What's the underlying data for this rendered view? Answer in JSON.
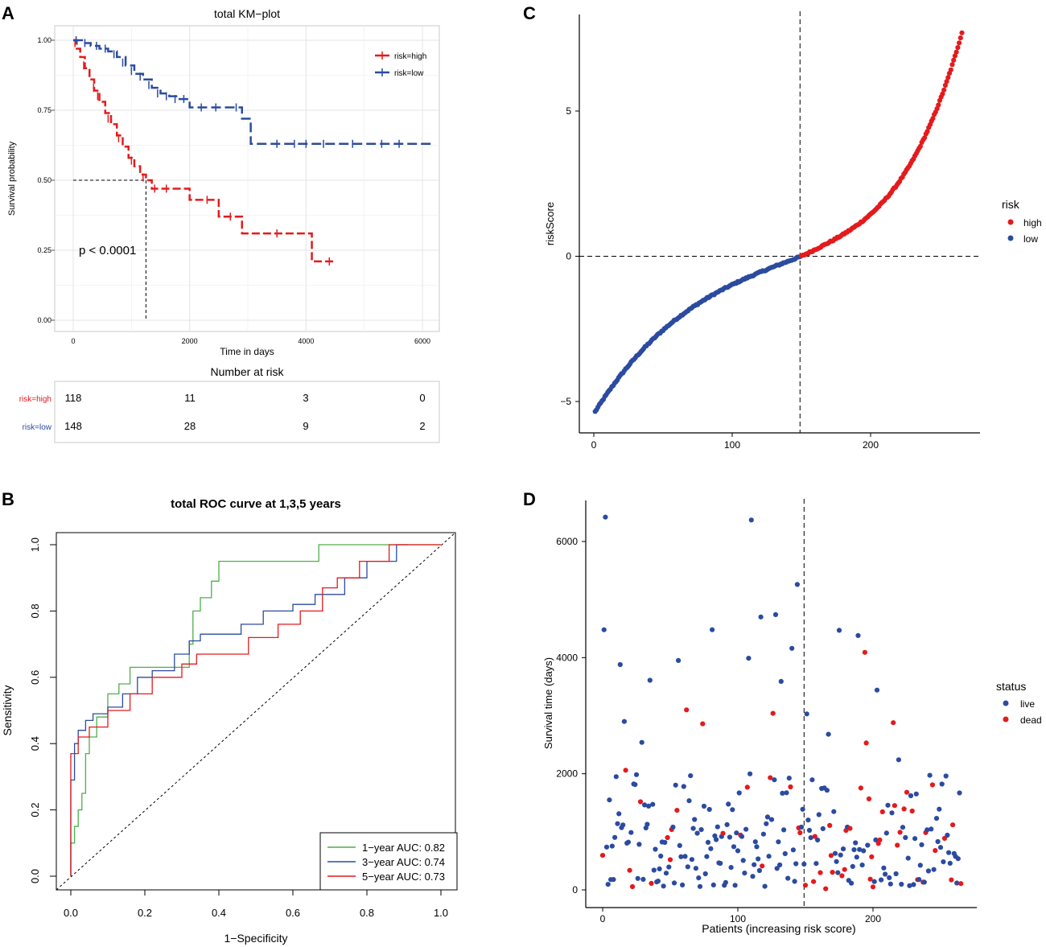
{
  "chart_data": [
    {
      "panel": "A",
      "type": "line",
      "title": "total KM−plot",
      "xlabel": "Time in days",
      "ylabel": "Survival probability",
      "xlim": [
        0,
        6200
      ],
      "ylim": [
        0,
        1
      ],
      "xticks": [
        "0",
        "2000",
        "4000",
        "6000"
      ],
      "yticks": [
        "0.00",
        "0.25",
        "0.50",
        "0.75",
        "1.00"
      ],
      "pvalue": "p < 0.0001",
      "median_survival_high": 1250,
      "legend": [
        "risk=high",
        "risk=low"
      ],
      "colors": {
        "high": "#e41a1c",
        "low": "#2b4ba0"
      },
      "series": [
        {
          "name": "risk=high",
          "x": [
            0,
            60,
            120,
            200,
            280,
            360,
            450,
            550,
            650,
            750,
            850,
            950,
            1050,
            1150,
            1250,
            1350,
            2000,
            2500,
            2900,
            3000,
            4100,
            4500
          ],
          "y": [
            1.0,
            0.97,
            0.94,
            0.9,
            0.86,
            0.82,
            0.78,
            0.74,
            0.7,
            0.66,
            0.62,
            0.58,
            0.55,
            0.52,
            0.5,
            0.47,
            0.43,
            0.37,
            0.31,
            0.31,
            0.21,
            0.21
          ],
          "censor_x": [
            30,
            180,
            350,
            420,
            600,
            780,
            1000,
            1200,
            1400,
            1600,
            2300,
            2700,
            3500,
            4400
          ],
          "censor_y": [
            0.99,
            0.91,
            0.83,
            0.8,
            0.72,
            0.65,
            0.57,
            0.51,
            0.47,
            0.47,
            0.43,
            0.37,
            0.31,
            0.21
          ]
        },
        {
          "name": "risk=low",
          "x": [
            0,
            150,
            300,
            450,
            600,
            750,
            900,
            1050,
            1200,
            1350,
            1500,
            1650,
            1800,
            2000,
            2500,
            2900,
            3050,
            3200,
            6200
          ],
          "y": [
            1.0,
            0.99,
            0.98,
            0.97,
            0.96,
            0.94,
            0.91,
            0.88,
            0.86,
            0.83,
            0.81,
            0.8,
            0.79,
            0.76,
            0.76,
            0.72,
            0.63,
            0.63,
            0.63
          ],
          "censor_x": [
            50,
            200,
            400,
            550,
            700,
            850,
            1000,
            1150,
            1300,
            1450,
            1600,
            1750,
            1900,
            2200,
            2450,
            2800,
            3500,
            3800,
            4000,
            4300,
            4800,
            5300,
            5600
          ],
          "censor_y": [
            1.0,
            0.99,
            0.98,
            0.97,
            0.95,
            0.92,
            0.89,
            0.87,
            0.84,
            0.81,
            0.8,
            0.79,
            0.79,
            0.76,
            0.76,
            0.76,
            0.63,
            0.63,
            0.63,
            0.63,
            0.63,
            0.63,
            0.63
          ]
        }
      ],
      "risk_table": {
        "title": "Number at risk",
        "times": [
          0,
          2000,
          4000,
          6000
        ],
        "rows": [
          {
            "label": "risk=high",
            "values": [
              "118",
              "11",
              "3",
              "0"
            ]
          },
          {
            "label": "risk=low",
            "values": [
              "148",
              "28",
              "9",
              "2"
            ]
          }
        ]
      }
    },
    {
      "panel": "B",
      "type": "line",
      "title": "total ROC curve at 1,3,5 years",
      "xlabel": "1−Specificity",
      "ylabel": "Sensitivity",
      "xlim": [
        0,
        1
      ],
      "ylim": [
        0,
        1
      ],
      "xticks": [
        "0.0",
        "0.2",
        "0.4",
        "0.6",
        "0.8",
        "1.0"
      ],
      "yticks": [
        "0.0",
        "0.2",
        "0.4",
        "0.6",
        "0.8",
        "1.0"
      ],
      "series": [
        {
          "name": "1−year AUC: 0.82",
          "color": "#4daf4a",
          "x": [
            0,
            0,
            0.01,
            0.01,
            0.02,
            0.02,
            0.03,
            0.03,
            0.04,
            0.04,
            0.05,
            0.05,
            0.07,
            0.07,
            0.1,
            0.1,
            0.13,
            0.13,
            0.16,
            0.16,
            0.32,
            0.32,
            0.33,
            0.33,
            0.35,
            0.35,
            0.38,
            0.38,
            0.4,
            0.4,
            0.67,
            0.67,
            1.0
          ],
          "y": [
            0,
            0.1,
            0.1,
            0.15,
            0.15,
            0.2,
            0.2,
            0.25,
            0.25,
            0.37,
            0.37,
            0.42,
            0.42,
            0.48,
            0.48,
            0.55,
            0.55,
            0.58,
            0.58,
            0.63,
            0.63,
            0.7,
            0.7,
            0.8,
            0.8,
            0.84,
            0.84,
            0.89,
            0.89,
            0.95,
            0.95,
            1.0,
            1.0
          ]
        },
        {
          "name": "3−year AUC: 0.74",
          "color": "#2b4ba0",
          "x": [
            0,
            0,
            0.01,
            0.01,
            0.02,
            0.02,
            0.04,
            0.04,
            0.06,
            0.06,
            0.1,
            0.1,
            0.14,
            0.14,
            0.18,
            0.18,
            0.22,
            0.22,
            0.28,
            0.28,
            0.32,
            0.32,
            0.35,
            0.35,
            0.46,
            0.46,
            0.52,
            0.52,
            0.6,
            0.6,
            0.66,
            0.66,
            0.74,
            0.74,
            0.8,
            0.8,
            0.88,
            0.88,
            0.91
          ],
          "y": [
            0,
            0.29,
            0.29,
            0.4,
            0.4,
            0.44,
            0.44,
            0.47,
            0.47,
            0.49,
            0.49,
            0.51,
            0.51,
            0.55,
            0.55,
            0.6,
            0.6,
            0.62,
            0.62,
            0.67,
            0.67,
            0.71,
            0.71,
            0.73,
            0.73,
            0.76,
            0.76,
            0.8,
            0.8,
            0.82,
            0.82,
            0.85,
            0.85,
            0.9,
            0.9,
            0.95,
            0.95,
            1.0,
            1.0
          ]
        },
        {
          "name": "5−year AUC: 0.73",
          "color": "#e41a1c",
          "x": [
            0,
            0,
            0.02,
            0.02,
            0.05,
            0.05,
            0.1,
            0.1,
            0.16,
            0.16,
            0.22,
            0.22,
            0.3,
            0.3,
            0.34,
            0.34,
            0.48,
            0.48,
            0.56,
            0.56,
            0.62,
            0.62,
            0.68,
            0.68,
            0.72,
            0.72,
            0.78,
            0.78,
            0.86,
            0.86,
            1.0
          ],
          "y": [
            0,
            0.37,
            0.37,
            0.42,
            0.42,
            0.45,
            0.45,
            0.5,
            0.5,
            0.55,
            0.55,
            0.6,
            0.6,
            0.64,
            0.64,
            0.67,
            0.67,
            0.72,
            0.72,
            0.76,
            0.76,
            0.8,
            0.8,
            0.87,
            0.87,
            0.9,
            0.9,
            0.95,
            0.95,
            1.0,
            1.0
          ]
        }
      ]
    },
    {
      "panel": "C",
      "type": "scatter",
      "xlabel": "",
      "ylabel": "riskScore",
      "xlim": [
        -10,
        276
      ],
      "ylim": [
        -6,
        8
      ],
      "xticks": [
        "0",
        "100",
        "200"
      ],
      "yticks": [
        "−5",
        "0",
        "5"
      ],
      "cutoff_index": 149,
      "n_patients": 266,
      "score_range": [
        -5.4,
        7.7
      ],
      "legend_title": "risk",
      "legend": [
        {
          "label": "high",
          "color": "#e41a1c"
        },
        {
          "label": "low",
          "color": "#2b4ba0"
        }
      ]
    },
    {
      "panel": "D",
      "type": "scatter",
      "xlabel": "Patients (increasing risk score)",
      "ylabel": "Survival time (days)",
      "xlim": [
        -10,
        276
      ],
      "ylim": [
        -300,
        6950
      ],
      "xticks": [
        "0",
        "100",
        "200"
      ],
      "yticks": [
        "0",
        "2000",
        "4000",
        "6000"
      ],
      "cutoff_index": 149,
      "legend_title": "status",
      "legend": [
        {
          "label": "live",
          "color": "#2b4ba0"
        },
        {
          "label": "dead",
          "color": "#e41a1c"
        }
      ],
      "highlight_points": [
        {
          "x": 2,
          "y": 6420,
          "status": "live"
        },
        {
          "x": 1,
          "y": 4480,
          "status": "live"
        },
        {
          "x": 13,
          "y": 3880,
          "status": "live"
        },
        {
          "x": 29,
          "y": 4880,
          "status": "live"
        },
        {
          "x": 35,
          "y": 3610,
          "status": "live"
        },
        {
          "x": 56,
          "y": 3950,
          "status": "live"
        },
        {
          "x": 62,
          "y": 3100,
          "status": "dead"
        },
        {
          "x": 74,
          "y": 2860,
          "status": "dead"
        },
        {
          "x": 81,
          "y": 4480,
          "status": "live"
        },
        {
          "x": 108,
          "y": 3990,
          "status": "live"
        },
        {
          "x": 110,
          "y": 6370,
          "status": "live"
        },
        {
          "x": 117,
          "y": 4700,
          "status": "live"
        },
        {
          "x": 128,
          "y": 4740,
          "status": "live"
        },
        {
          "x": 126,
          "y": 3040,
          "status": "dead"
        },
        {
          "x": 132,
          "y": 3590,
          "status": "live"
        },
        {
          "x": 140,
          "y": 4160,
          "status": "live"
        },
        {
          "x": 144,
          "y": 5260,
          "status": "live"
        },
        {
          "x": 151,
          "y": 3030,
          "status": "live"
        },
        {
          "x": 167,
          "y": 2680,
          "status": "live"
        },
        {
          "x": 175,
          "y": 4470,
          "status": "live"
        },
        {
          "x": 189,
          "y": 4380,
          "status": "live"
        },
        {
          "x": 194,
          "y": 4090,
          "status": "dead"
        },
        {
          "x": 195,
          "y": 2530,
          "status": "dead"
        },
        {
          "x": 203,
          "y": 3440,
          "status": "live"
        },
        {
          "x": 215,
          "y": 2880,
          "status": "dead"
        },
        {
          "x": 219,
          "y": 2240,
          "status": "live"
        },
        {
          "x": 17,
          "y": 2060,
          "status": "dead"
        },
        {
          "x": 16,
          "y": 2900,
          "status": "live"
        },
        {
          "x": 29,
          "y": 2540,
          "status": "live"
        },
        {
          "x": 10,
          "y": 1950,
          "status": "live"
        },
        {
          "x": 150,
          "y": 80,
          "status": "dead"
        },
        {
          "x": 165,
          "y": 20,
          "status": "dead"
        }
      ]
    }
  ]
}
